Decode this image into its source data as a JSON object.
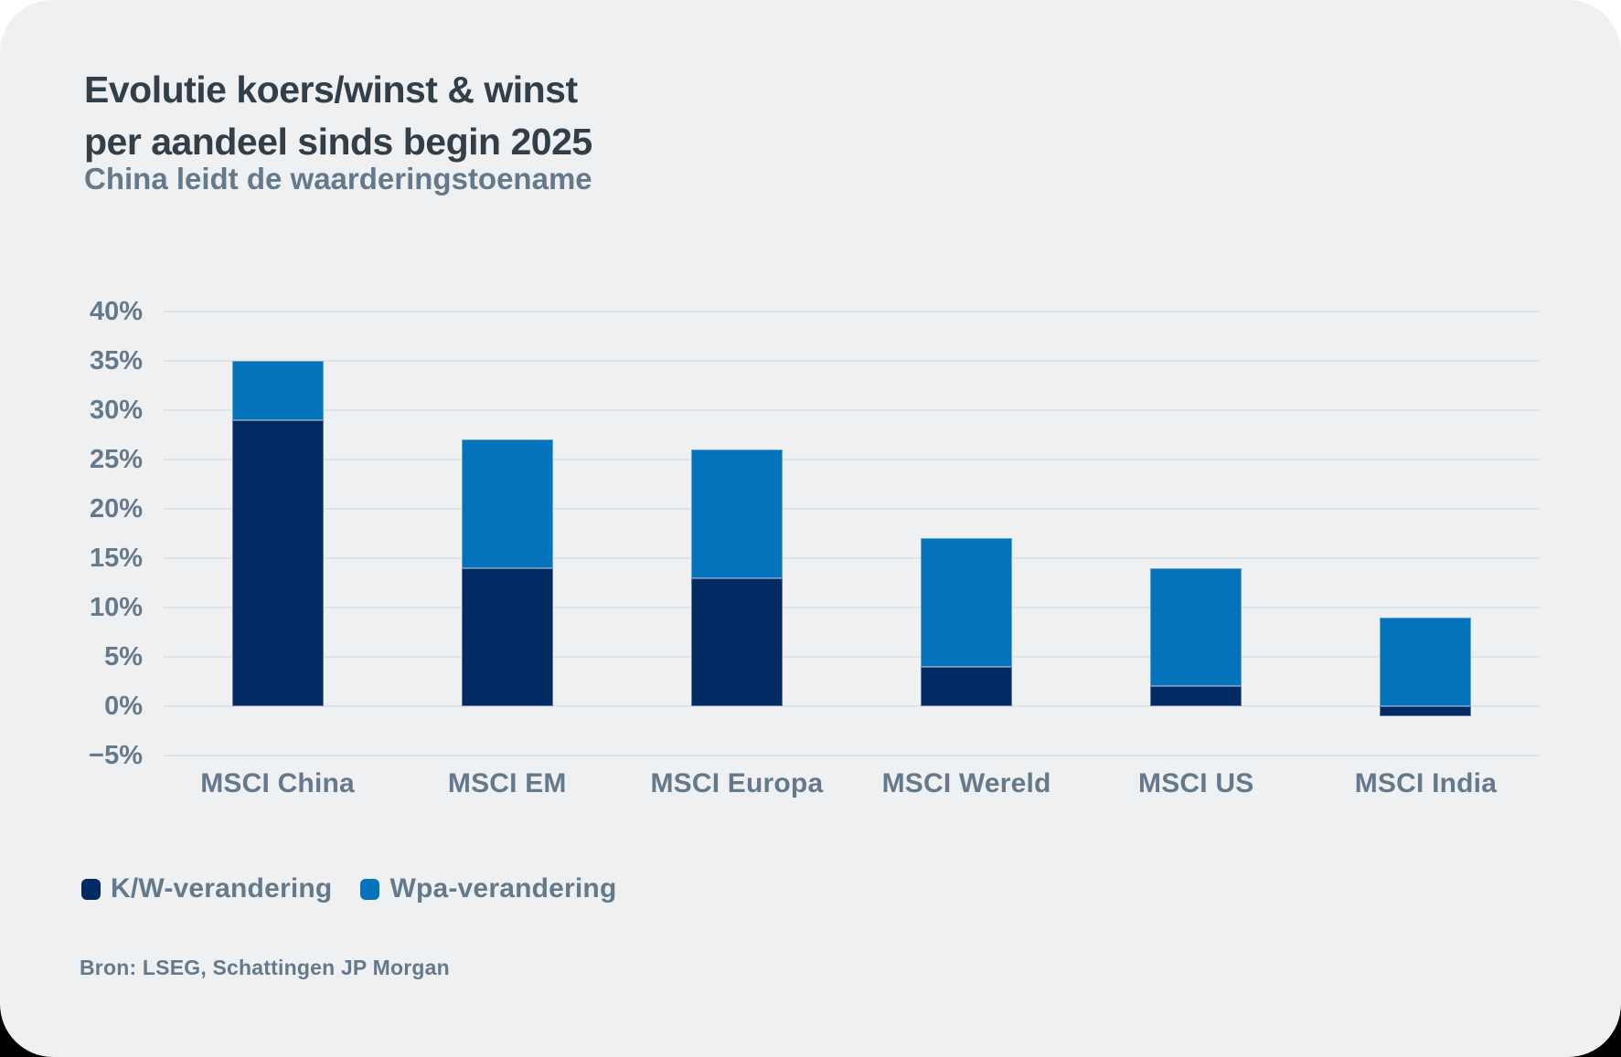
{
  "header": {
    "title_line1": "Evolutie koers/winst & winst",
    "title_line2": "per aandeel sinds begin 2025",
    "subtitle": "China leidt de waarderingstoename"
  },
  "chart_data": {
    "type": "bar",
    "stacked": true,
    "categories": [
      "MSCI China",
      "MSCI EM",
      "MSCI Europa",
      "MSCI Wereld",
      "MSCI US",
      "MSCI India"
    ],
    "series": [
      {
        "name": "K/W-verandering",
        "color": "#032A63",
        "values": [
          29,
          14,
          13,
          4,
          2,
          -1
        ]
      },
      {
        "name": "Wpa-verandering",
        "color": "#0473BC",
        "values": [
          6,
          13,
          13,
          13,
          12,
          9
        ]
      }
    ],
    "totals": [
      35,
      27,
      26,
      17,
      14,
      8
    ],
    "title": "Evolutie koers/winst & winst per aandeel sinds begin 2025",
    "xlabel": "",
    "ylabel": "",
    "ylim": [
      -5,
      40
    ],
    "tick_step": 5,
    "y_ticks": [
      "40%",
      "35%",
      "30%",
      "25%",
      "20%",
      "15%",
      "10%",
      "5%",
      "0%",
      "−5%"
    ],
    "grid": true,
    "legend_position": "bottom-left"
  },
  "legend": {
    "items": [
      {
        "label": "K/W-verandering",
        "color": "#032A63"
      },
      {
        "label": "Wpa-verandering",
        "color": "#0473BC"
      }
    ]
  },
  "source": "Bron: LSEG, Schattingen JP Morgan",
  "colors": {
    "card_background": "#EFF0F2",
    "title_text": "#333F48",
    "subtitle_text": "#64798C",
    "axis_text": "#64798B",
    "gridline": "#E1E4E7",
    "series_kw": "#032A63",
    "series_wpa": "#0473BC"
  }
}
